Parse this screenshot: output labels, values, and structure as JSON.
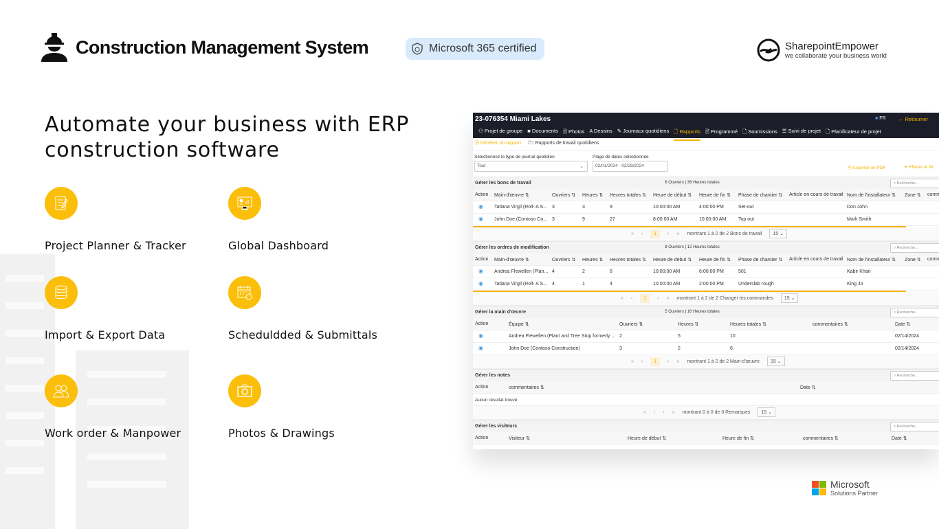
{
  "header": {
    "title": "Construction Management System",
    "badge": "Microsoft 365 certified",
    "partner_logo": {
      "name": "SharepointEmpower",
      "tagline": "we collaborate your business world"
    }
  },
  "headline": "Automate your business with ERP construction software",
  "features": [
    {
      "label": "Project Planner & Tracker",
      "icon": "checklist-icon"
    },
    {
      "label": "Global Dashboard",
      "icon": "dashboard-monitor-icon"
    },
    {
      "label": "Import & Export Data",
      "icon": "database-icon"
    },
    {
      "label": "Scheduldded & Submittals",
      "icon": "calendar-clock-icon"
    },
    {
      "label": "Work order & Manpower",
      "icon": "users-icon"
    },
    {
      "label": "Photos & Drawings",
      "icon": "camera-icon"
    }
  ],
  "colors": {
    "accent": "#fbbf0b",
    "app_bar": "#1b1e29",
    "app_accent": "#f5b400",
    "badge_bg": "#d8eafb"
  },
  "app": {
    "project": "23-076354 Miami Lakes",
    "lang": "FR",
    "back": "Retourner",
    "nav": [
      "Projet de groupe",
      "Documents",
      "Photos",
      "Dessins",
      "Journaux quotidiens",
      "Rapports",
      "Programmé",
      "Soumissions",
      "Suivi de projet",
      "Planificateur de projet"
    ],
    "nav_active": "Rapports",
    "subnav": [
      "Générer un rapport",
      "Rapports de travail quotidiens"
    ],
    "filters": {
      "type_label": "Sélectionnez le type de journal quotidien",
      "type_value": "Tout",
      "date_label": "Plage de dates sélectionnée",
      "date_value": "02/01/2024 - 02/29/2024",
      "export": "Exporter un PDF",
      "clear": "Effacer le filt"
    },
    "search_placeholder": "Recherche...",
    "sections": [
      {
        "title": "Gérer les bons de travail",
        "summary": "6 Ouvriers | 36 Heures totales",
        "columns": [
          "Action",
          "Main-d'œuvre ⇅",
          "Ouvriers ⇅",
          "Heures ⇅",
          "Heures totales ⇅",
          "Heure de début ⇅",
          "Heure de fin ⇅",
          "Phase de chantier ⇅",
          "Article en cours de travail",
          "Nom de l'installateur ⇅",
          "Zone ⇅",
          "comm"
        ],
        "rows": [
          [
            "",
            "Tatiana Virgil (Roll- A S...",
            "3",
            "3",
            "9",
            "10:00:00 AM",
            "4:00:00 PM",
            "Set-out",
            "",
            "Don John",
            "",
            ""
          ],
          [
            "",
            "John Doe (Contoso Co...",
            "3",
            "9",
            "27",
            "8:00:00 AM",
            "10:00:00 AM",
            "Top out",
            "",
            "Mark Smith",
            "",
            ""
          ]
        ],
        "pagination": {
          "page": "1",
          "text": "montrant 1 à 2 de 2 Bons de travail",
          "size": "15"
        }
      },
      {
        "title": "Gérer les ordres de modification",
        "summary": "8 Ouvriers | 12 Heures totales",
        "columns": [
          "Action",
          "Main-d'œuvre ⇅",
          "Ouvriers ⇅",
          "Heures ⇅",
          "Heures totales ⇅",
          "Heure de début ⇅",
          "Heure de fin ⇅",
          "Phase de chantier ⇅",
          "Article en cours de travail",
          "Nom de l'installateur ⇅",
          "Zone ⇅",
          "comm"
        ],
        "rows": [
          [
            "",
            "Andrea Flewellen (Plan...",
            "4",
            "2",
            "8",
            "10:00:00 AM",
            "6:00:00 PM",
            "501",
            "",
            "Kabir Khan",
            "",
            ""
          ],
          [
            "",
            "Tatiana Virgil (Roll- A S...",
            "4",
            "1",
            "4",
            "10:00:00 AM",
            "2:00:00 PM",
            "Underslab rough",
            "",
            "King Jo",
            "",
            ""
          ]
        ],
        "pagination": {
          "page": "1",
          "text": "montrant 1 à 2 de 2 Changer les commandes",
          "size": "15"
        }
      },
      {
        "title": "Gérer la main d'œuvre",
        "summary": "5 Ouvriers | 16 Heures totales",
        "columns": [
          "Action",
          "Équipe ⇅",
          "Ouvriers ⇅",
          "Heures ⇅",
          "Heures totales ⇅",
          "commentaires ⇅",
          "Date ⇅"
        ],
        "rows": [
          [
            "",
            "Andrea Flewellen (Plant and Tree Stop formerly ...",
            "2",
            "5",
            "10",
            "",
            "02/14/2024"
          ],
          [
            "",
            "John Doe (Contoso Construction)",
            "3",
            "2",
            "6",
            "",
            "02/14/2024"
          ]
        ],
        "pagination": {
          "page": "1",
          "text": "montrant 1 à 2 de 2 Main-d'œuvre",
          "size": "15"
        }
      },
      {
        "title": "Gérer les notes",
        "summary": "",
        "columns": [
          "Action",
          "commentaires ⇅",
          "Date ⇅"
        ],
        "rows": [],
        "empty": "Aucun résultat trouvé",
        "pagination": {
          "page": "",
          "text": "montrant 0 à 0 de 0 Remarques",
          "size": "15"
        }
      },
      {
        "title": "Gérer les visiteurs",
        "summary": "",
        "columns": [
          "Action",
          "Visiteur ⇅",
          "Heure de début ⇅",
          "Heure de fin ⇅",
          "commentaires ⇅",
          "Date ⇅"
        ],
        "rows": []
      }
    ]
  },
  "footer_logo": {
    "line1": "Microsoft",
    "line2": "Solutions Partner"
  }
}
